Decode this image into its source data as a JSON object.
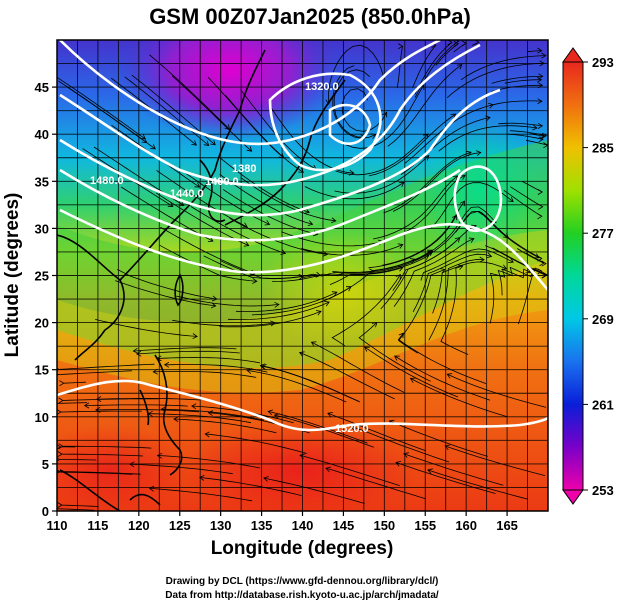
{
  "title": "GSM 00Z07Jan2025 (850.0hPa)",
  "xlabel": "Longitude (degrees)",
  "ylabel": "Latitude  (degrees)",
  "x_ticks": [
    "110",
    "115",
    "120",
    "125",
    "130",
    "135",
    "140",
    "145",
    "150",
    "155",
    "160",
    "165"
  ],
  "y_ticks": [
    "0",
    "5",
    "10",
    "15",
    "20",
    "25",
    "30",
    "35",
    "40",
    "45"
  ],
  "colorbar": {
    "labels": [
      "293",
      "285",
      "277",
      "269",
      "261",
      "253"
    ],
    "min": 253,
    "max": 293
  },
  "contour_labels": [
    "1320.0",
    "1380",
    "1400.0",
    "1440.0",
    "1480.0",
    "1520.0"
  ],
  "credits": {
    "line1": "Drawing by DCL (https://www.gfd-dennou.org/library/dcl/)",
    "line2": "Data from http://database.rish.kyoto-u.ac.jp/arch/jmadata/"
  },
  "chart_data": {
    "type": "heatmap",
    "title": "GSM 00Z07Jan2025 (850.0hPa)",
    "xlabel": "Longitude (degrees)",
    "ylabel": "Latitude  (degrees)",
    "xlim": [
      110,
      170
    ],
    "ylim": [
      0,
      50
    ],
    "colorbar_range": [
      253,
      293
    ],
    "overlays": [
      "temperature shading",
      "geopotential height contours",
      "wind streamlines",
      "coastlines",
      "grid"
    ]
  }
}
